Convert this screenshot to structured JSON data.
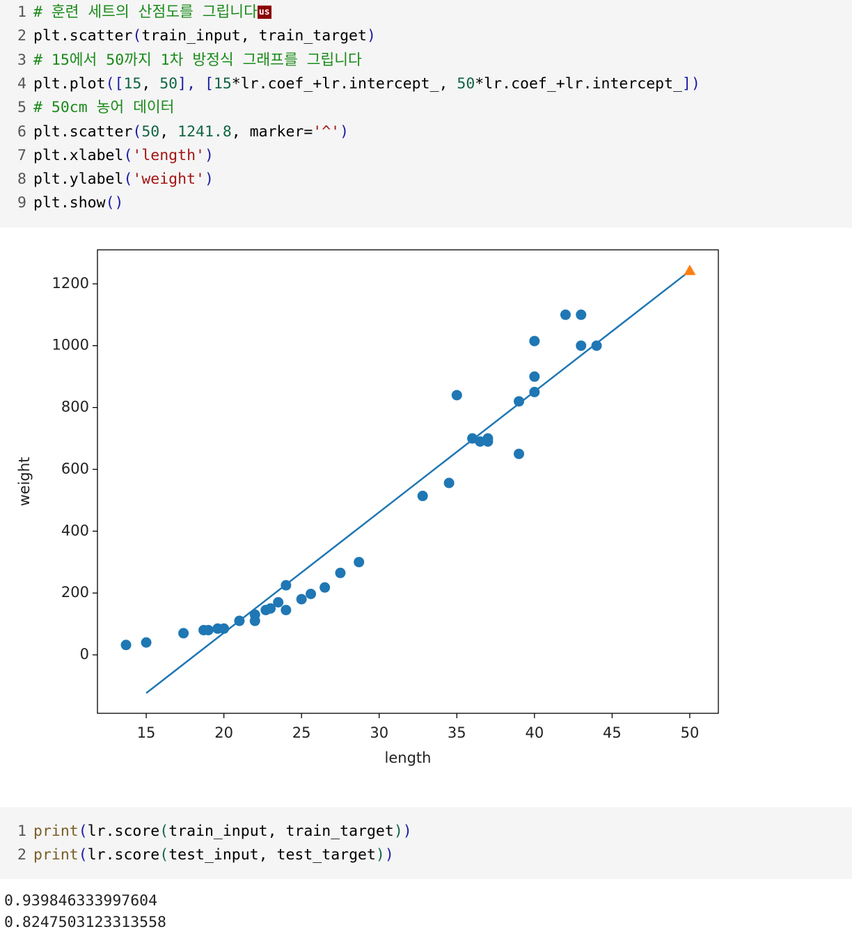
{
  "cells": [
    {
      "lines": [
        [
          {
            "text": "# 훈련 세트의 산점도를 그립니다",
            "color": "#1a8a1a"
          },
          {
            "text": "us",
            "color": "#ffffff",
            "background": "#8b0000"
          }
        ],
        [
          {
            "text": "plt.scatter",
            "color": "#000000"
          },
          {
            "text": "(",
            "color": "#1a1aa6"
          },
          {
            "text": "train_input, train_target",
            "color": "#000000"
          },
          {
            "text": ")",
            "color": "#1a1aa6"
          }
        ],
        [
          {
            "text": "# 15에서 50까지 1차 방정식 그래프를 그립니다",
            "color": "#1a8a1a"
          }
        ],
        [
          {
            "text": "plt.plot",
            "color": "#000000"
          },
          {
            "text": "([",
            "color": "#1a1aa6"
          },
          {
            "text": "15",
            "color": "#116644"
          },
          {
            "text": ", ",
            "color": "#000000"
          },
          {
            "text": "50",
            "color": "#116644"
          },
          {
            "text": "], [",
            "color": "#1a1aa6"
          },
          {
            "text": "15",
            "color": "#116644"
          },
          {
            "text": "*lr.coef_+lr.intercept_, ",
            "color": "#000000"
          },
          {
            "text": "50",
            "color": "#116644"
          },
          {
            "text": "*lr.coef_+lr.intercept_",
            "color": "#000000"
          },
          {
            "text": "])",
            "color": "#1a1aa6"
          }
        ],
        [
          {
            "text": "# 50cm 농어 데이터",
            "color": "#1a8a1a"
          }
        ],
        [
          {
            "text": "plt.scatter",
            "color": "#000000"
          },
          {
            "text": "(",
            "color": "#1a1aa6"
          },
          {
            "text": "50",
            "color": "#116644"
          },
          {
            "text": ", ",
            "color": "#000000"
          },
          {
            "text": "1241.8",
            "color": "#116644"
          },
          {
            "text": ", marker=",
            "color": "#000000"
          },
          {
            "text": "'^'",
            "color": "#a31515"
          },
          {
            "text": ")",
            "color": "#1a1aa6"
          }
        ],
        [
          {
            "text": "plt.xlabel",
            "color": "#000000"
          },
          {
            "text": "(",
            "color": "#1a1aa6"
          },
          {
            "text": "'length'",
            "color": "#a31515"
          },
          {
            "text": ")",
            "color": "#1a1aa6"
          }
        ],
        [
          {
            "text": "plt.ylabel",
            "color": "#000000"
          },
          {
            "text": "(",
            "color": "#1a1aa6"
          },
          {
            "text": "'weight'",
            "color": "#a31515"
          },
          {
            "text": ")",
            "color": "#1a1aa6"
          }
        ],
        [
          {
            "text": "plt.show",
            "color": "#000000"
          },
          {
            "text": "()",
            "color": "#1a1aa6"
          }
        ]
      ]
    },
    {
      "lines": [
        [
          {
            "text": "print",
            "color": "#795e26"
          },
          {
            "text": "(",
            "color": "#1a1aa6"
          },
          {
            "text": "lr.score",
            "color": "#000000"
          },
          {
            "text": "(",
            "color": "#116644"
          },
          {
            "text": "train_input, train_target",
            "color": "#000000"
          },
          {
            "text": ")",
            "color": "#116644"
          },
          {
            "text": ")",
            "color": "#1a1aa6"
          }
        ],
        [
          {
            "text": "print",
            "color": "#795e26"
          },
          {
            "text": "(",
            "color": "#1a1aa6"
          },
          {
            "text": "lr.score",
            "color": "#000000"
          },
          {
            "text": "(",
            "color": "#116644"
          },
          {
            "text": "test_input, test_target",
            "color": "#000000"
          },
          {
            "text": ")",
            "color": "#116644"
          },
          {
            "text": ")",
            "color": "#1a1aa6"
          }
        ]
      ]
    }
  ],
  "chart_data": {
    "type": "scatter",
    "x_label": "length",
    "y_label": "weight",
    "xlim": [
      11.86,
      51.84
    ],
    "ylim": [
      -189,
      1310
    ],
    "xticks": [
      15,
      20,
      25,
      30,
      35,
      40,
      45,
      50
    ],
    "yticks": [
      0,
      200,
      400,
      600,
      800,
      1000,
      1200
    ],
    "series": [
      {
        "type": "scatter",
        "marker": "o",
        "color": "#1f77b4",
        "x": [
          13.7,
          15.0,
          17.4,
          18.7,
          19.0,
          19.6,
          20.0,
          21.0,
          22.0,
          22.0,
          22.7,
          23.0,
          23.5,
          24.0,
          24.0,
          25.0,
          25.6,
          26.5,
          27.5,
          28.7,
          32.8,
          34.5,
          35.0,
          36.0,
          36.5,
          37.0,
          37.0,
          39.0,
          39.0,
          40.0,
          40.0,
          40.0,
          42.0,
          43.0,
          43.0,
          44.0
        ],
        "values": [
          32,
          40,
          70,
          80,
          80,
          85,
          85,
          110,
          130,
          110,
          145,
          150,
          170,
          225,
          145,
          180,
          197,
          218,
          265,
          300,
          514,
          556,
          840,
          700,
          690,
          700,
          690,
          820,
          650,
          1015,
          900,
          850,
          1100,
          1100,
          1000,
          1000
        ]
      },
      {
        "type": "line",
        "color": "#1f77b4",
        "x": [
          15,
          50
        ],
        "values": [
          -123.8,
          1241.8
        ]
      },
      {
        "type": "scatter",
        "marker": "^",
        "color": "#ff7f0e",
        "x": [
          50
        ],
        "values": [
          1241.8
        ]
      }
    ]
  },
  "outputs": [
    "0.939846333997604",
    "0.8247503123313558"
  ]
}
